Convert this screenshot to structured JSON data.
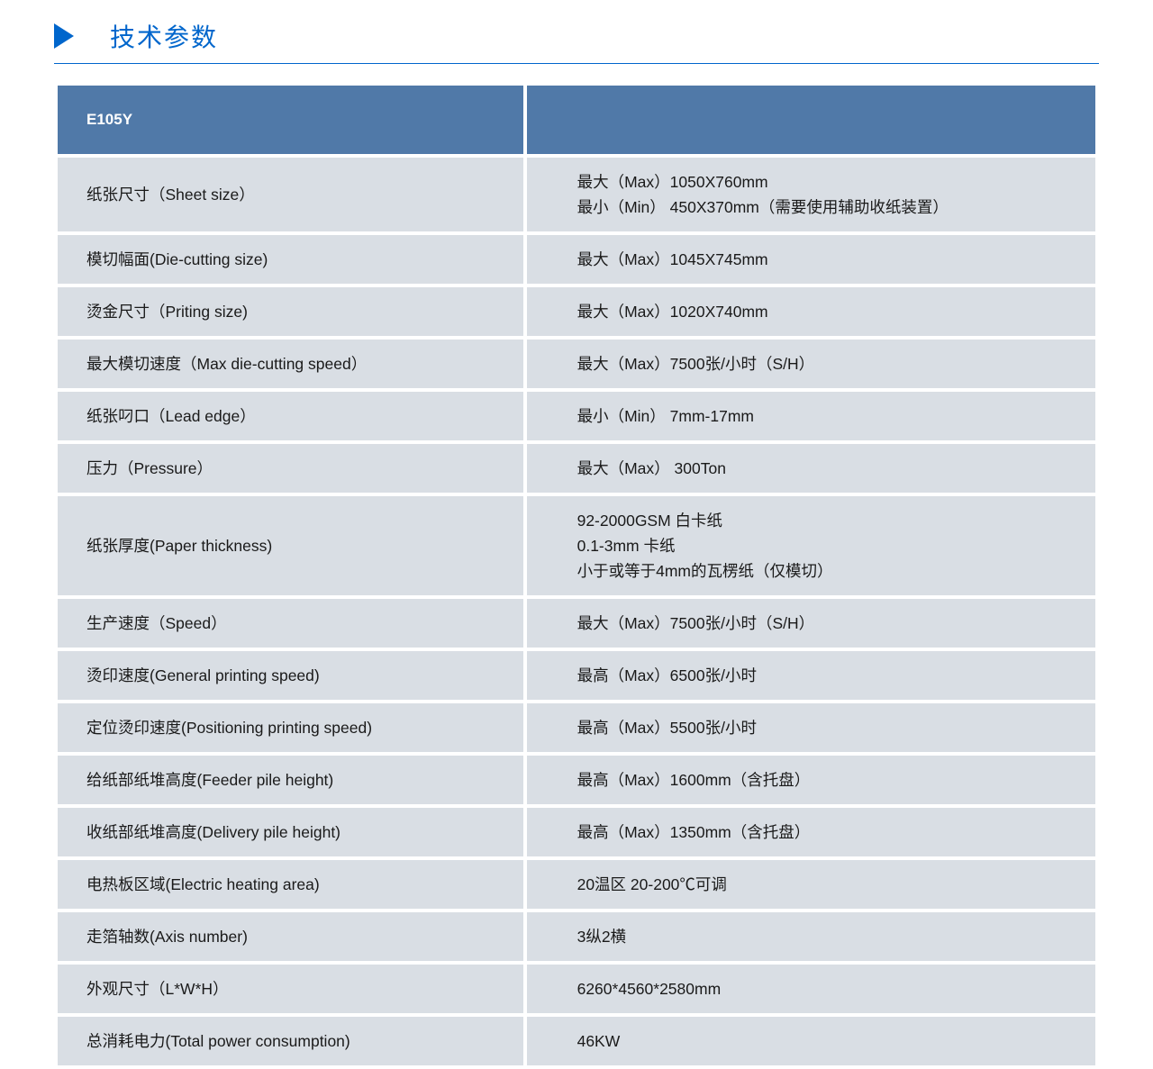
{
  "header": {
    "title": "技术参数",
    "title_color": "#0066cc",
    "arrow_color": "#0066cc",
    "border_color": "#0066cc"
  },
  "table": {
    "type": "table",
    "header_bg": "#5079a8",
    "header_text_color": "#ffffff",
    "row_bg": "#d9dee4",
    "row_text_color": "#1a1a1a",
    "border_spacing": 4,
    "cell_fontsize": 17.5,
    "header_fontsize": 17,
    "col_widths": [
      "45%",
      "55%"
    ],
    "header_cells": [
      "E105Y",
      ""
    ],
    "rows": [
      {
        "label": "纸张尺寸（Sheet size）",
        "value": "最大（Max）1050X760mm\n最小（Min） 450X370mm（需要使用辅助收纸装置）"
      },
      {
        "label": "模切幅面(Die-cutting size)",
        "value": "最大（Max）1045X745mm"
      },
      {
        "label": "烫金尺寸（Priting size)",
        "value": "最大（Max）1020X740mm"
      },
      {
        "label": "最大模切速度（Max die-cutting speed）",
        "value": "最大（Max）7500张/小时（S/H）"
      },
      {
        "label": "纸张叼口（Lead edge）",
        "value": "最小（Min） 7mm-17mm"
      },
      {
        "label": "压力（Pressure）",
        "value": "最大（Max） 300Ton"
      },
      {
        "label": "纸张厚度(Paper thickness)",
        "value": "92-2000GSM  白卡纸\n0.1-3mm           卡纸\n小于或等于4mm的瓦楞纸（仅模切）"
      },
      {
        "label": "生产速度（Speed）",
        "value": "最大（Max）7500张/小时（S/H）"
      },
      {
        "label": "烫印速度(General printing speed)",
        "value": "最高（Max）6500张/小时"
      },
      {
        "label": "定位烫印速度(Positioning printing speed)",
        "value": "最高（Max）5500张/小时"
      },
      {
        "label": "给纸部纸堆高度(Feeder pile height)",
        "value": "最高（Max）1600mm（含托盘）"
      },
      {
        "label": "收纸部纸堆高度(Delivery pile height)",
        "value": "最高（Max）1350mm（含托盘）"
      },
      {
        "label": "电热板区域(Electric heating area)",
        "value": "20温区 20-200℃可调"
      },
      {
        "label": "走箔轴数(Axis number)",
        "value": "3纵2横"
      },
      {
        "label": "外观尺寸（L*W*H）",
        "value": "6260*4560*2580mm"
      },
      {
        "label": "总消耗电力(Total power consumption)",
        "value": "46KW"
      }
    ]
  }
}
